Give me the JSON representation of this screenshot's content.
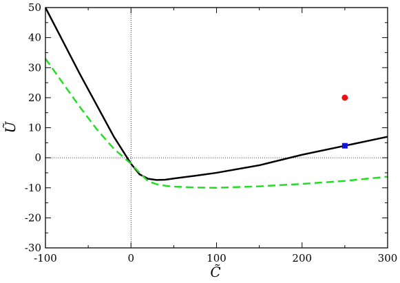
{
  "chart_data": {
    "type": "line",
    "title": "",
    "xlabel": "C̃",
    "ylabel": "Ũ",
    "xlim": [
      -100,
      300
    ],
    "ylim": [
      -30,
      50
    ],
    "x_ticks": [
      -100,
      0,
      100,
      200,
      300
    ],
    "y_ticks": [
      -30,
      -20,
      -10,
      0,
      10,
      20,
      30,
      40,
      50
    ],
    "x_tick_labels": [
      "-100",
      "0",
      "100",
      "200",
      "300"
    ],
    "y_tick_labels": [
      "-30",
      "-20",
      "-10",
      "0",
      "10",
      "20",
      "30",
      "40",
      "50"
    ],
    "grid": false,
    "reference_lines": {
      "x": 0,
      "y": 0,
      "style": "dotted"
    },
    "series": [
      {
        "style": "solid",
        "color": "#000000",
        "x": [
          -100,
          -80,
          -60,
          -40,
          -20,
          0,
          10,
          20,
          30,
          40,
          50,
          75,
          100,
          150,
          200,
          250,
          300
        ],
        "y": [
          50,
          39,
          28,
          17.5,
          7,
          -2,
          -5.5,
          -7,
          -7.4,
          -7.3,
          -6.9,
          -6.0,
          -5.0,
          -2.5,
          1.0,
          4.0,
          7.0
        ]
      },
      {
        "style": "dashed",
        "color": "#22dd22",
        "x": [
          -100,
          -80,
          -60,
          -40,
          -20,
          0,
          10,
          20,
          30,
          40,
          50,
          75,
          100,
          150,
          200,
          250,
          300
        ],
        "y": [
          33,
          25,
          17,
          9.5,
          3,
          -2,
          -5,
          -7.8,
          -8.8,
          -9.3,
          -9.6,
          -9.9,
          -10.0,
          -9.5,
          -8.7,
          -7.7,
          -6.3
        ]
      }
    ],
    "markers": [
      {
        "shape": "circle",
        "color": "#ee1111",
        "x": 250,
        "y": 20
      },
      {
        "shape": "square",
        "color": "#1111dd",
        "x": 250,
        "y": 4
      }
    ]
  }
}
